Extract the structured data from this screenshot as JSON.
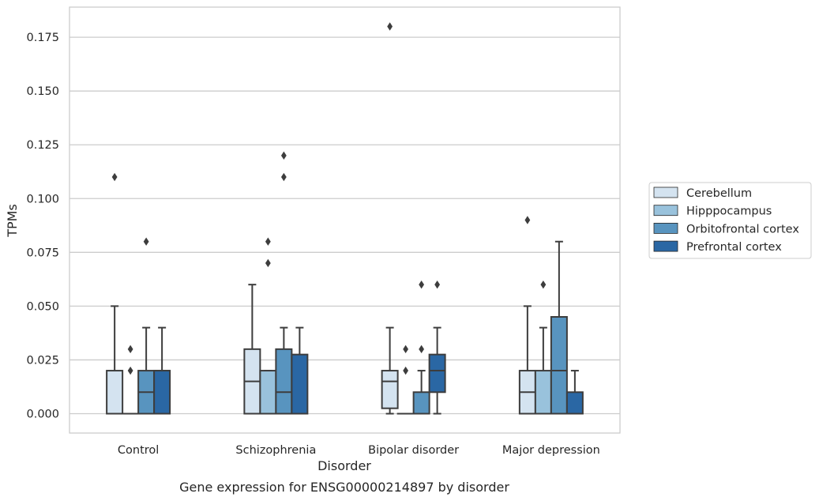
{
  "chart_data": {
    "type": "box",
    "title": "",
    "caption": "Gene expression for ENSG00000214897 by disorder",
    "xlabel": "Disorder",
    "ylabel": "TPMs",
    "ylim": [
      -0.009,
      0.189
    ],
    "yticks": [
      "0.000",
      "0.025",
      "0.050",
      "0.075",
      "0.100",
      "0.125",
      "0.150",
      "0.175"
    ],
    "grid": "horizontal",
    "legend_position": "right",
    "categories": [
      "Control",
      "Schizophrenia",
      "Bipolar disorder",
      "Major depression"
    ],
    "series": [
      {
        "name": "Cerebellum",
        "color": "#d4e3f0",
        "boxes": [
          {
            "whislo": 0.0,
            "q1": 0.0,
            "med": 0.0,
            "q3": 0.02,
            "whishi": 0.05,
            "fliers": [
              0.11
            ]
          },
          {
            "whislo": 0.0,
            "q1": 0.0,
            "med": 0.015,
            "q3": 0.03,
            "whishi": 0.06,
            "fliers": []
          },
          {
            "whislo": 0.0,
            "q1": 0.0025,
            "med": 0.015,
            "q3": 0.02,
            "whishi": 0.04,
            "fliers": [
              0.18
            ]
          },
          {
            "whislo": 0.0,
            "q1": 0.0,
            "med": 0.01,
            "q3": 0.02,
            "whishi": 0.05,
            "fliers": [
              0.09
            ]
          }
        ]
      },
      {
        "name": "Hipppocampus",
        "color": "#99c2dc",
        "boxes": [
          {
            "whislo": 0.0,
            "q1": 0.0,
            "med": 0.0,
            "q3": 0.0,
            "whishi": 0.0,
            "fliers": [
              0.02,
              0.03
            ]
          },
          {
            "whislo": 0.0,
            "q1": 0.0,
            "med": 0.0,
            "q3": 0.02,
            "whishi": 0.02,
            "fliers": [
              0.07,
              0.08
            ]
          },
          {
            "whislo": 0.0,
            "q1": 0.0,
            "med": 0.0,
            "q3": 0.0,
            "whishi": 0.0,
            "fliers": [
              0.02,
              0.03
            ]
          },
          {
            "whislo": 0.0,
            "q1": 0.0,
            "med": 0.0,
            "q3": 0.02,
            "whishi": 0.04,
            "fliers": [
              0.06
            ]
          }
        ]
      },
      {
        "name": "Orbitofrontal cortex",
        "color": "#5894bf",
        "boxes": [
          {
            "whislo": 0.0,
            "q1": 0.0,
            "med": 0.01,
            "q3": 0.02,
            "whishi": 0.04,
            "fliers": [
              0.08
            ]
          },
          {
            "whislo": 0.0,
            "q1": 0.0,
            "med": 0.01,
            "q3": 0.03,
            "whishi": 0.04,
            "fliers": [
              0.11,
              0.12
            ]
          },
          {
            "whislo": 0.0,
            "q1": 0.0,
            "med": 0.0,
            "q3": 0.01,
            "whishi": 0.02,
            "fliers": [
              0.03,
              0.06
            ]
          },
          {
            "whislo": 0.0,
            "q1": 0.0,
            "med": 0.02,
            "q3": 0.045,
            "whishi": 0.08,
            "fliers": []
          }
        ]
      },
      {
        "name": "Prefrontal cortex",
        "color": "#2a67a4",
        "boxes": [
          {
            "whislo": 0.0,
            "q1": 0.0,
            "med": 0.02,
            "q3": 0.02,
            "whishi": 0.04,
            "fliers": []
          },
          {
            "whislo": 0.0,
            "q1": 0.0,
            "med": 0.0,
            "q3": 0.0275,
            "whishi": 0.04,
            "fliers": []
          },
          {
            "whislo": 0.0,
            "q1": 0.01,
            "med": 0.02,
            "q3": 0.0275,
            "whishi": 0.04,
            "fliers": [
              0.06
            ]
          },
          {
            "whislo": 0.0,
            "q1": 0.0,
            "med": 0.0,
            "q3": 0.01,
            "whishi": 0.02,
            "fliers": []
          }
        ]
      }
    ]
  }
}
